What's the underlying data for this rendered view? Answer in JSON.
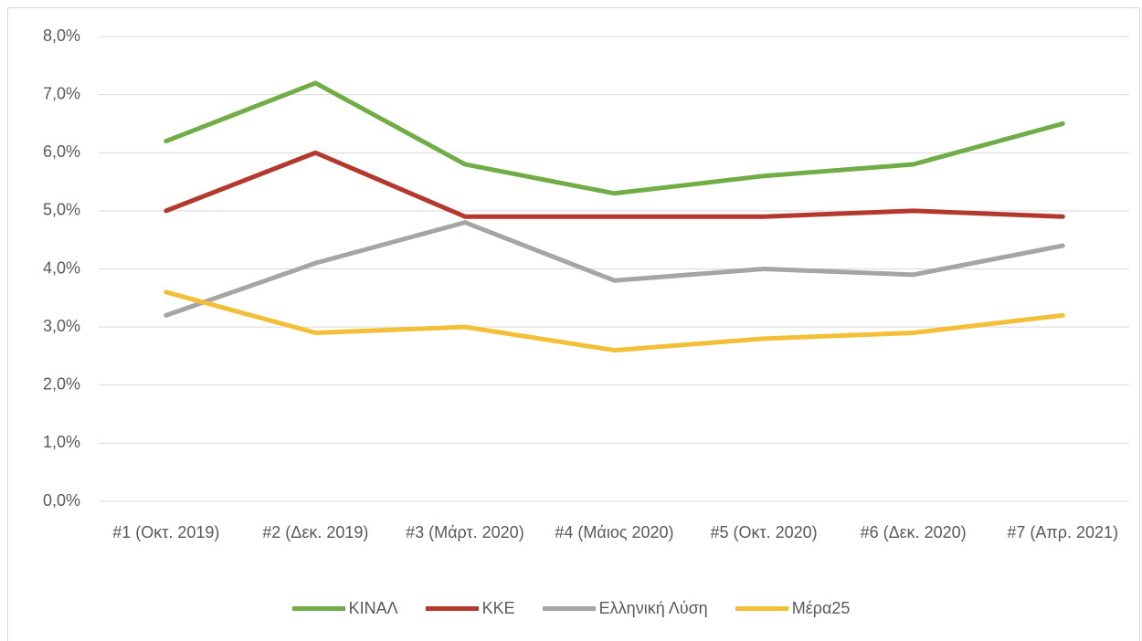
{
  "chart_data": {
    "type": "line",
    "categories": [
      "#1 (Οκτ. 2019)",
      "#2 (Δεκ. 2019)",
      "#3 (Μάρτ. 2020)",
      "#4 (Μάιος 2020)",
      "#5 (Οκτ. 2020)",
      "#6 (Δεκ. 2020)",
      "#7 (Απρ. 2021)"
    ],
    "series": [
      {
        "name": "ΚΙΝΑΛ",
        "color": "#70ad47",
        "values": [
          6.2,
          7.2,
          5.8,
          5.3,
          5.6,
          5.8,
          6.5
        ]
      },
      {
        "name": "ΚΚΕ",
        "color": "#b5382c",
        "values": [
          5.0,
          6.0,
          4.9,
          4.9,
          4.9,
          5.0,
          4.9
        ]
      },
      {
        "name": "Ελληνική Λύση",
        "color": "#a5a5a5",
        "values": [
          3.2,
          4.1,
          4.8,
          3.8,
          4.0,
          3.9,
          4.4
        ]
      },
      {
        "name": "Μέρα25",
        "color": "#f2bf36",
        "values": [
          3.6,
          2.9,
          3.0,
          2.6,
          2.8,
          2.9,
          3.2
        ]
      }
    ],
    "ylim": [
      0,
      8
    ],
    "yticks": [
      {
        "value": 0,
        "label": "0,0%"
      },
      {
        "value": 1,
        "label": "1,0%"
      },
      {
        "value": 2,
        "label": "2,0%"
      },
      {
        "value": 3,
        "label": "3,0%"
      },
      {
        "value": 4,
        "label": "4,0%"
      },
      {
        "value": 5,
        "label": "5,0%"
      },
      {
        "value": 6,
        "label": "6,0%"
      },
      {
        "value": 7,
        "label": "7,0%"
      },
      {
        "value": 8,
        "label": "8,0%"
      }
    ],
    "grid": true,
    "legend": "bottom"
  }
}
